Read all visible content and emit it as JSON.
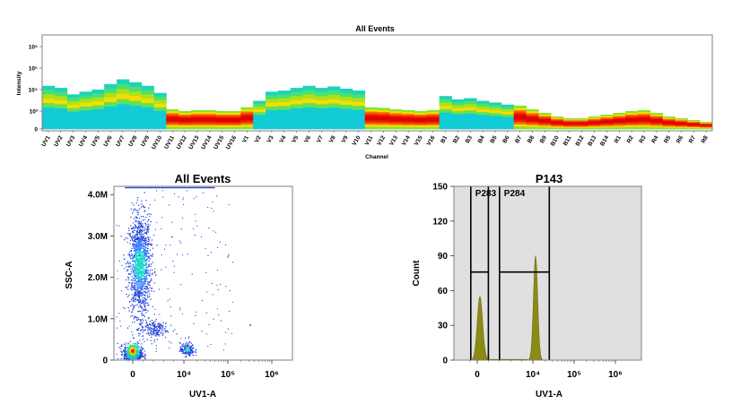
{
  "colors": {
    "scatter_dot": "#1f3fd6",
    "hist_fill": "#8b8a16",
    "hist_bg": "#e0e0e0",
    "gate_line": "#000000"
  },
  "chart_data": [
    {
      "id": "spectrum",
      "type": "heatmap",
      "title": "All Events",
      "xlabel": "Channel",
      "ylabel": "Intensity",
      "yticks": [
        "0",
        "10³",
        "10⁴",
        "10⁵",
        "10⁶"
      ],
      "ytick_values": [
        0,
        1000,
        10000,
        100000,
        1000000
      ],
      "channels": [
        "UV1",
        "UV2",
        "UV3",
        "UV4",
        "UV5",
        "UV6",
        "UV7",
        "UV8",
        "UV9",
        "UV10",
        "UV11",
        "UV12",
        "UV13",
        "UV14",
        "UV15",
        "UV16",
        "V1",
        "V2",
        "V3",
        "V4",
        "V5",
        "V6",
        "V7",
        "V8",
        "V9",
        "V10",
        "V11",
        "V12",
        "V13",
        "V14",
        "V15",
        "V16",
        "B1",
        "B2",
        "B3",
        "B4",
        "B5",
        "B6",
        "B7",
        "B8",
        "B9",
        "B10",
        "B11",
        "B12",
        "B13",
        "B14",
        "R1",
        "R2",
        "R3",
        "R4",
        "R5",
        "R6",
        "R7",
        "R8"
      ],
      "peak_intensity": [
        15000,
        12000,
        6000,
        8000,
        10000,
        18000,
        30000,
        22000,
        15000,
        7000,
        1200,
        1000,
        1100,
        1100,
        1000,
        1000,
        1500,
        3000,
        8000,
        9000,
        12000,
        15000,
        12000,
        14000,
        11000,
        9000,
        1500,
        1400,
        1200,
        1100,
        1000,
        1100,
        5000,
        3500,
        4000,
        3000,
        2500,
        2000,
        1800,
        1200,
        900,
        700,
        600,
        600,
        700,
        800,
        900,
        1000,
        1100,
        900,
        700,
        600,
        500,
        400
      ]
    },
    {
      "id": "scatter",
      "type": "scatter",
      "title": "All Events",
      "xlabel": "UV1-A",
      "ylabel": "SSC-A",
      "xticks": [
        "0",
        "10⁴",
        "10⁵",
        "10⁶"
      ],
      "xtick_values": [
        0,
        10000,
        100000,
        1000000
      ],
      "yticks": [
        "0",
        "1.0M",
        "2.0M",
        "3.0M",
        "4.0M"
      ],
      "ytick_values": [
        0,
        1000000,
        2000000,
        3000000,
        4000000
      ],
      "ylim": [
        0,
        4200000
      ],
      "populations": [
        {
          "x_center": 0,
          "y_center": 2300000,
          "count": 1400,
          "spread_y": 600000
        },
        {
          "x_center": 0,
          "y_center": 150000,
          "count": 700,
          "spread_y": 120000
        },
        {
          "x_center": 4000,
          "y_center": 750000,
          "count": 180,
          "spread_y": 120000
        },
        {
          "x_center": 12000,
          "y_center": 250000,
          "count": 160,
          "spread_y": 80000
        }
      ]
    },
    {
      "id": "histogram",
      "type": "area",
      "title": "P143",
      "xlabel": "UV1-A",
      "ylabel": "Count",
      "xticks": [
        "0",
        "10⁴",
        "10⁵",
        "10⁶"
      ],
      "xtick_values": [
        0,
        10000,
        100000,
        1000000
      ],
      "yticks": [
        "0",
        "30",
        "60",
        "90",
        "120",
        "150"
      ],
      "ytick_values": [
        0,
        30,
        60,
        90,
        120,
        150
      ],
      "ylim": [
        0,
        150
      ],
      "peaks": [
        {
          "x_center": 0,
          "height": 55
        },
        {
          "x_center": 10000,
          "height": 90
        }
      ],
      "gates": [
        {
          "name": "P283",
          "x_from": -900,
          "x_to": 2000,
          "y_level": 76
        },
        {
          "name": "P284",
          "x_from": 4000,
          "x_to": 25000,
          "y_level": 76
        }
      ]
    }
  ]
}
